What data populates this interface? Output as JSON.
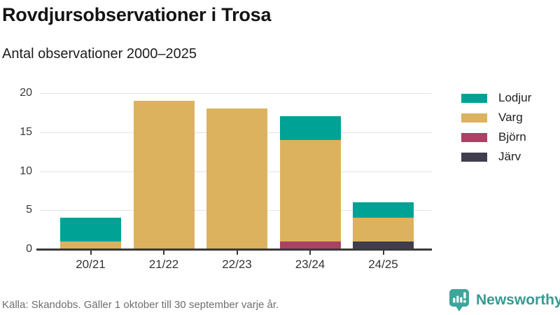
{
  "header": {
    "title": "Rovdjursobservationer i Trosa",
    "subtitle": "Antal observationer 2000–2025"
  },
  "chart_data": {
    "type": "bar",
    "stacked": true,
    "title": "Rovdjursobservationer i Trosa",
    "subtitle": "Antal observationer 2000–2025",
    "categories": [
      "20/21",
      "21/22",
      "22/23",
      "23/24",
      "24/25"
    ],
    "series": [
      {
        "name": "Järv",
        "color": "#403e4e",
        "values": [
          0,
          0,
          0,
          0,
          1
        ]
      },
      {
        "name": "Björn",
        "color": "#a84365",
        "values": [
          0,
          0,
          0,
          1,
          0
        ]
      },
      {
        "name": "Varg",
        "color": "#dcb25e",
        "values": [
          1,
          19,
          18,
          13,
          3
        ]
      },
      {
        "name": "Lodjur",
        "color": "#00a296",
        "values": [
          3,
          0,
          0,
          3,
          2
        ]
      }
    ],
    "totals": [
      4,
      19,
      18,
      17,
      6
    ],
    "legend_order": [
      "Lodjur",
      "Varg",
      "Björn",
      "Järv"
    ],
    "legend_position": "right",
    "yticks": [
      0,
      5,
      10,
      15,
      20
    ],
    "ylim": [
      0,
      20
    ],
    "xlabel": "",
    "ylabel": "",
    "grid": true
  },
  "footer": {
    "source": "Källa: Skandobs. Gäller 1 oktober till 30 september varje år.",
    "brand": "Newsworthy"
  },
  "colors": {
    "accent_teal": "#00a296",
    "gold": "#dcb25e",
    "maroon": "#a84365",
    "dark_slate": "#403e4e",
    "axis": "#3a3a3a",
    "grid": "#e4e4e4",
    "brand_teal": "#379a92"
  },
  "icons": {
    "brand_logo": "newsworthy-speech-bubble-barchart-icon"
  }
}
